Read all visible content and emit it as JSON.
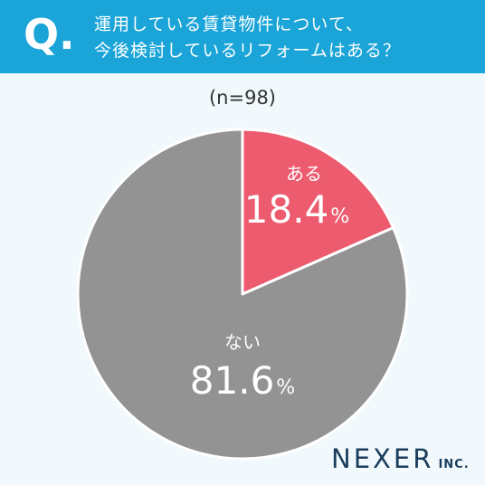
{
  "header": {
    "q_mark": "Q.",
    "question_line1": "運用している賃貸物件について、",
    "question_line2": "今後検討しているリフォームはある？",
    "background_color": "#1aa4d8"
  },
  "sample_size": "(n=98)",
  "chart_data": {
    "type": "pie",
    "title": "運用している賃貸物件について、今後検討しているリフォームはある？",
    "categories": [
      "ある",
      "ない"
    ],
    "values": [
      18.4,
      81.6
    ],
    "unit": "%",
    "colors": [
      "#ec5b6e",
      "#939393"
    ],
    "start_angle": "12 o'clock, clockwise"
  },
  "labels": {
    "yes_label": "ある",
    "yes_value": "18.4",
    "no_label": "ない",
    "no_value": "81.6",
    "percent_sign": "%"
  },
  "logo": {
    "name": "NEXER",
    "suffix": "INC."
  }
}
